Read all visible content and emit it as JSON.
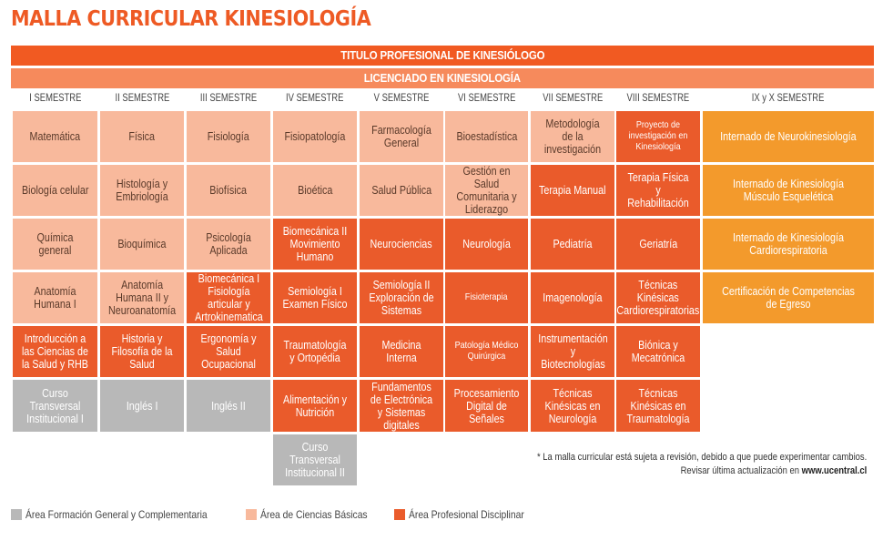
{
  "title": "MALLA CURRICULAR KINESIOLOGÍA",
  "titulo_profesional": "TITULO PROFESIONAL DE KINESIÓLOGO",
  "licenciado": "LICENCIADO EN KINESIOLOGÍA",
  "semesters": [
    "I SEMESTRE",
    "II SEMESTRE",
    "III SEMESTRE",
    "IV SEMESTRE",
    "V SEMESTRE",
    "VI SEMESTRE",
    "VII SEMESTRE",
    "VIII SEMESTRE",
    "IX y X SEMESTRE"
  ],
  "courses": [
    [
      "Matemática",
      "Biología celular",
      "Química general",
      "Anatomía Humana I",
      "Introducción a las Ciencias de la Salud y RHB",
      "Curso Transversal Institucional I"
    ],
    [
      "Física",
      "Histología y Embriología",
      "Bioquímica",
      "Anatomía Humana II y Neuroanatomía",
      "Historia y Filosofía de la Salud",
      "Inglés I"
    ],
    [
      "Fisiología",
      "Biofísica",
      "Psicología Aplicada",
      "Biomecánica I Fisiología articular y Artrokinematica",
      "Ergonomía y Salud Ocupacional",
      "Inglés II"
    ],
    [
      "Fisiopatología",
      "Bioética",
      "Biomecánica II Movimiento Humano",
      "Semiología I Examen Físico",
      "Traumatología y Ortopédia",
      "Alimentación y Nutrición",
      "Curso Transversal Institucional II"
    ],
    [
      "Farmacología General",
      "Salud Pública",
      "Neurociencias",
      "Semiología II Exploración de Sistemas",
      "Medicina Interna",
      "Fundamentos de Electrónica y Sistemas digitales"
    ],
    [
      "Bioestadística",
      "Gestión en Salud Comunitaria y Liderazgo",
      "Neurología",
      "Fisioterapia",
      "Patología Médico Quirúrgica",
      "Procesamiento Digital de Señales"
    ],
    [
      "Metodología de la investigación",
      "Terapia Manual",
      "Pediatría",
      "Imagenología",
      "Instrumentación y Biotecnologías",
      "Técnicas Kinésicas en Neurología"
    ],
    [
      "Proyecto de investigación en Kinesiología",
      "Terapia Física y Rehabilitación",
      "Geriatría",
      "Técnicas Kinésicas Cardiorespiratorias",
      "Biónica y Mecatrónica",
      "Técnicas Kinésicas en Traumatología"
    ],
    [
      "Internado de Neurokinesiología",
      "Internado de Kinesiología Músculo Esquelética",
      "Internado de Kinesiología Cardiorespiratoria",
      "Certificación de Competencias de Egreso"
    ]
  ],
  "note": {
    "line1": "* La malla curricular está sujeta a revisión, debido a que puede experimentar cambios.",
    "line2_prefix": "Revisar última actualización en ",
    "line2_link": "www.ucentral.cl"
  },
  "legend": [
    {
      "label": "Área Formación General y Complementaria",
      "color": "#b8b8b8"
    },
    {
      "label": "Área de Ciencias Básicas",
      "color": "#f8b99c"
    },
    {
      "label": "Área Profesional Disciplinar",
      "color": "#ea5b2b"
    }
  ],
  "colors": {
    "accent": "#ee5a24",
    "basic": "#f8b99c",
    "professional": "#ea5b2b",
    "general": "#b8b8b8",
    "internship": "#f39a2c"
  }
}
